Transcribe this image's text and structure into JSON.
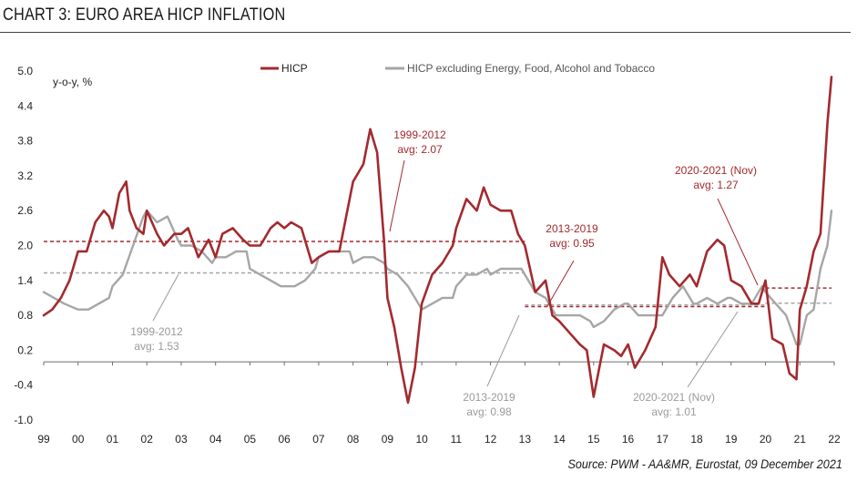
{
  "title": "CHART 3: EURO AREA HICP INFLATION",
  "source": "Source: PWM - AA&MR, Eurostat, 09 December 2021",
  "colors": {
    "hicp": "#a32a2e",
    "core": "#a6a6a6",
    "text": "#222222",
    "red_text": "#a32a2e",
    "grey_text": "#9a9a9a"
  },
  "chart_data": {
    "type": "line",
    "ylabel": "y-o-y, %",
    "ylim": [
      -1.0,
      5.0
    ],
    "yticks": [
      "5.0",
      "4.4",
      "3.8",
      "3.2",
      "2.6",
      "2.0",
      "1.4",
      "0.8",
      "0.2",
      "-0.4",
      "-1.0"
    ],
    "xticks": [
      "99",
      "00",
      "01",
      "02",
      "03",
      "04",
      "05",
      "06",
      "07",
      "08",
      "09",
      "10",
      "11",
      "12",
      "13",
      "14",
      "15",
      "16",
      "17",
      "18",
      "19",
      "20",
      "21",
      "22"
    ],
    "xlim": [
      1999.0,
      2022.0
    ],
    "grid": false,
    "legend_position": "top-center",
    "series": [
      {
        "name": "HICP",
        "color": "#a32a2e",
        "x": [
          1999.0,
          1999.25,
          1999.5,
          1999.75,
          2000.0,
          2000.25,
          2000.5,
          2000.75,
          2000.9,
          2001.0,
          2001.2,
          2001.4,
          2001.5,
          2001.7,
          2001.9,
          2002.0,
          2002.3,
          2002.5,
          2002.8,
          2003.0,
          2003.2,
          2003.5,
          2003.8,
          2004.0,
          2004.2,
          2004.5,
          2004.8,
          2005.0,
          2005.3,
          2005.6,
          2005.8,
          2006.0,
          2006.2,
          2006.5,
          2006.8,
          2007.0,
          2007.3,
          2007.6,
          2007.8,
          2008.0,
          2008.3,
          2008.5,
          2008.7,
          2008.9,
          2009.0,
          2009.2,
          2009.4,
          2009.6,
          2009.8,
          2010.0,
          2010.3,
          2010.6,
          2010.9,
          2011.0,
          2011.3,
          2011.6,
          2011.8,
          2012.0,
          2012.3,
          2012.6,
          2012.8,
          2013.0,
          2013.3,
          2013.6,
          2013.8,
          2014.0,
          2014.3,
          2014.6,
          2014.8,
          2015.0,
          2015.3,
          2015.6,
          2015.8,
          2016.0,
          2016.2,
          2016.5,
          2016.8,
          2017.0,
          2017.2,
          2017.5,
          2017.8,
          2018.0,
          2018.3,
          2018.6,
          2018.8,
          2019.0,
          2019.3,
          2019.6,
          2019.8,
          2020.0,
          2020.2,
          2020.5,
          2020.7,
          2020.9,
          2021.0,
          2021.2,
          2021.4,
          2021.6,
          2021.8,
          2021.92
        ],
        "y": [
          0.8,
          0.9,
          1.1,
          1.4,
          1.9,
          1.9,
          2.4,
          2.6,
          2.5,
          2.3,
          2.9,
          3.1,
          2.6,
          2.3,
          2.2,
          2.6,
          2.2,
          2.0,
          2.2,
          2.2,
          2.3,
          1.8,
          2.1,
          1.8,
          2.2,
          2.3,
          2.1,
          2.0,
          2.0,
          2.3,
          2.4,
          2.3,
          2.4,
          2.3,
          1.7,
          1.8,
          1.9,
          1.9,
          2.5,
          3.1,
          3.4,
          4.0,
          3.6,
          2.1,
          1.1,
          0.6,
          -0.1,
          -0.7,
          -0.1,
          1.0,
          1.5,
          1.7,
          2.0,
          2.3,
          2.8,
          2.6,
          3.0,
          2.7,
          2.6,
          2.6,
          2.2,
          2.0,
          1.2,
          1.4,
          0.8,
          0.7,
          0.5,
          0.3,
          0.2,
          -0.6,
          0.3,
          0.2,
          0.1,
          0.3,
          -0.1,
          0.2,
          0.6,
          1.8,
          1.5,
          1.3,
          1.5,
          1.3,
          1.9,
          2.1,
          2.0,
          1.4,
          1.3,
          1.0,
          1.0,
          1.4,
          0.4,
          0.3,
          -0.2,
          -0.3,
          0.9,
          1.3,
          1.9,
          2.2,
          4.1,
          4.9
        ]
      },
      {
        "name": "HICP excluding Energy, Food, Alcohol and Tobacco",
        "color": "#a6a6a6",
        "x": [
          1999.0,
          1999.3,
          1999.6,
          2000.0,
          2000.3,
          2000.6,
          2000.9,
          2001.0,
          2001.3,
          2001.6,
          2001.9,
          2002.0,
          2002.3,
          2002.6,
          2002.9,
          2003.0,
          2003.3,
          2003.6,
          2003.9,
          2004.0,
          2004.3,
          2004.6,
          2004.9,
          2005.0,
          2005.3,
          2005.6,
          2005.9,
          2006.0,
          2006.3,
          2006.6,
          2006.9,
          2007.0,
          2007.3,
          2007.6,
          2007.9,
          2008.0,
          2008.3,
          2008.6,
          2008.9,
          2009.0,
          2009.3,
          2009.6,
          2009.9,
          2010.0,
          2010.3,
          2010.6,
          2010.9,
          2011.0,
          2011.3,
          2011.6,
          2011.9,
          2012.0,
          2012.3,
          2012.6,
          2012.9,
          2013.0,
          2013.3,
          2013.6,
          2013.9,
          2014.0,
          2014.3,
          2014.6,
          2014.9,
          2015.0,
          2015.3,
          2015.6,
          2015.9,
          2016.0,
          2016.3,
          2016.6,
          2016.9,
          2017.0,
          2017.3,
          2017.6,
          2017.9,
          2018.0,
          2018.3,
          2018.6,
          2018.9,
          2019.0,
          2019.3,
          2019.6,
          2019.9,
          2020.0,
          2020.3,
          2020.6,
          2020.9,
          2021.0,
          2021.2,
          2021.4,
          2021.6,
          2021.8,
          2021.92
        ],
        "y": [
          1.2,
          1.1,
          1.0,
          0.9,
          0.9,
          1.0,
          1.1,
          1.3,
          1.5,
          2.0,
          2.5,
          2.6,
          2.4,
          2.5,
          2.1,
          2.0,
          2.0,
          1.9,
          1.7,
          1.8,
          1.8,
          1.9,
          1.9,
          1.6,
          1.5,
          1.4,
          1.3,
          1.3,
          1.3,
          1.4,
          1.6,
          1.8,
          1.9,
          1.9,
          1.9,
          1.7,
          1.8,
          1.8,
          1.7,
          1.6,
          1.5,
          1.3,
          1.0,
          0.9,
          1.0,
          1.1,
          1.1,
          1.3,
          1.5,
          1.5,
          1.6,
          1.5,
          1.6,
          1.6,
          1.6,
          1.5,
          1.2,
          1.1,
          0.8,
          0.8,
          0.8,
          0.8,
          0.7,
          0.6,
          0.7,
          0.9,
          1.0,
          1.0,
          0.8,
          0.8,
          0.8,
          0.8,
          1.1,
          1.3,
          1.0,
          1.0,
          1.1,
          1.0,
          1.1,
          1.1,
          1.0,
          1.0,
          1.3,
          1.2,
          1.0,
          0.8,
          0.3,
          0.3,
          0.8,
          0.9,
          1.6,
          2.0,
          2.6
        ]
      }
    ],
    "reference_lines": [
      {
        "color": "#a32a2e",
        "y": 2.07,
        "x_start": 1999.0,
        "x_end": 2013.0
      },
      {
        "color": "#a6a6a6",
        "y": 1.53,
        "x_start": 1999.0,
        "x_end": 2013.0
      },
      {
        "color": "#a32a2e",
        "y": 0.95,
        "x_start": 2013.0,
        "x_end": 2020.0
      },
      {
        "color": "#a6a6a6",
        "y": 0.98,
        "x_start": 2013.0,
        "x_end": 2020.0
      },
      {
        "color": "#a32a2e",
        "y": 1.27,
        "x_start": 2020.0,
        "x_end": 2021.92
      },
      {
        "color": "#a6a6a6",
        "y": 1.01,
        "x_start": 2020.0,
        "x_end": 2021.92
      }
    ],
    "annotations": [
      {
        "id": "a1",
        "color": "#a32a2e",
        "lines": [
          "1999-2012",
          "avg: 2.07"
        ]
      },
      {
        "id": "a2",
        "color": "#9a9a9a",
        "lines": [
          "1999-2012",
          "avg: 1.53"
        ]
      },
      {
        "id": "a3",
        "color": "#a32a2e",
        "lines": [
          "2013-2019",
          "avg: 0.95"
        ]
      },
      {
        "id": "a4",
        "color": "#9a9a9a",
        "lines": [
          "2013-2019",
          "avg: 0.98"
        ]
      },
      {
        "id": "a5",
        "color": "#a32a2e",
        "lines": [
          "2020-2021 (Nov)",
          "avg: 1.27"
        ]
      },
      {
        "id": "a6",
        "color": "#9a9a9a",
        "lines": [
          "2020-2021 (Nov)",
          "avg: 1.01"
        ]
      }
    ]
  }
}
